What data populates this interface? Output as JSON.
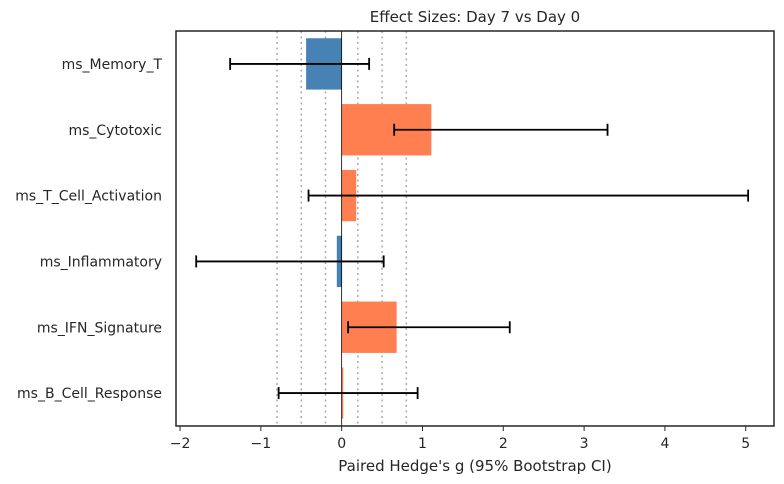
{
  "chart_data": {
    "type": "bar",
    "orientation": "horizontal",
    "title": "Effect Sizes: Day 7 vs Day 0",
    "xlabel": "Paired Hedge's g (95% Bootstrap CI)",
    "ylabel": "",
    "xlim": [
      -2.05,
      5.35
    ],
    "xticks": [
      -2,
      -1,
      0,
      1,
      2,
      3,
      4,
      5
    ],
    "xtick_labels": [
      "−2",
      "−1",
      "0",
      "1",
      "2",
      "3",
      "4",
      "5"
    ],
    "reference_lines": [
      -0.8,
      -0.5,
      -0.2,
      0.2,
      0.5,
      0.8
    ],
    "grid": false,
    "colors": {
      "positive": "#ff7f50",
      "negative": "#4682b4",
      "errorbar": "#000000",
      "reference": "#aaaaaa"
    },
    "categories": [
      "ms_Memory_T",
      "ms_Cytotoxic",
      "ms_T_Cell_Activation",
      "ms_Inflammatory",
      "ms_IFN_Signature",
      "ms_B_Cell_Response"
    ],
    "values": [
      -0.44,
      1.11,
      0.18,
      -0.06,
      0.68,
      0.02
    ],
    "ci_low": [
      -1.38,
      0.65,
      -0.41,
      -1.8,
      0.08,
      -0.78
    ],
    "ci_high": [
      0.34,
      3.29,
      5.03,
      0.52,
      2.08,
      0.94
    ]
  }
}
